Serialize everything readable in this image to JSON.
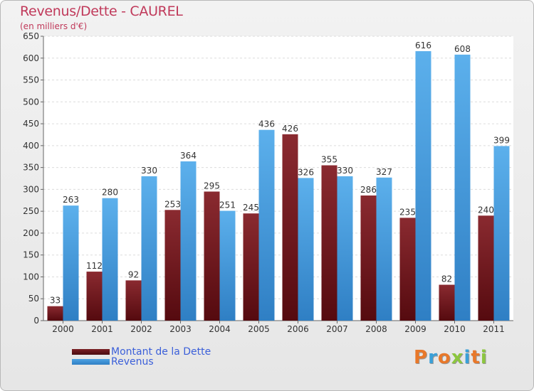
{
  "title": "Revenus/Dette - CAUREL",
  "subtitle": "(en milliers d'€)",
  "legend": {
    "debt_label": "Montant de la Dette",
    "revenue_label": "Revenus"
  },
  "logo": {
    "text": "Proxiti",
    "colors": [
      "#e8782a",
      "#3aa0d8",
      "#e8782a",
      "#8cc63f",
      "#3aa0d8",
      "#e8782a",
      "#8cc63f"
    ]
  },
  "colors": {
    "debt": "#7a1f24",
    "revenue": "#4ea3e3",
    "title": "#c0395a"
  },
  "chart_data": {
    "type": "bar",
    "categories": [
      "2000",
      "2001",
      "2002",
      "2003",
      "2004",
      "2005",
      "2006",
      "2007",
      "2008",
      "2009",
      "2010",
      "2011"
    ],
    "series": [
      {
        "name": "Montant de la Dette",
        "values": [
          33,
          112,
          92,
          253,
          295,
          245,
          426,
          355,
          286,
          235,
          82,
          240
        ]
      },
      {
        "name": "Revenus",
        "values": [
          263,
          280,
          330,
          364,
          251,
          436,
          326,
          330,
          327,
          616,
          608,
          399
        ]
      }
    ],
    "ylim": [
      0,
      650
    ],
    "yticks": [
      0,
      50,
      100,
      150,
      200,
      250,
      300,
      350,
      400,
      450,
      500,
      550,
      600,
      650
    ],
    "grid": true,
    "legend_position": "bottom-left"
  }
}
